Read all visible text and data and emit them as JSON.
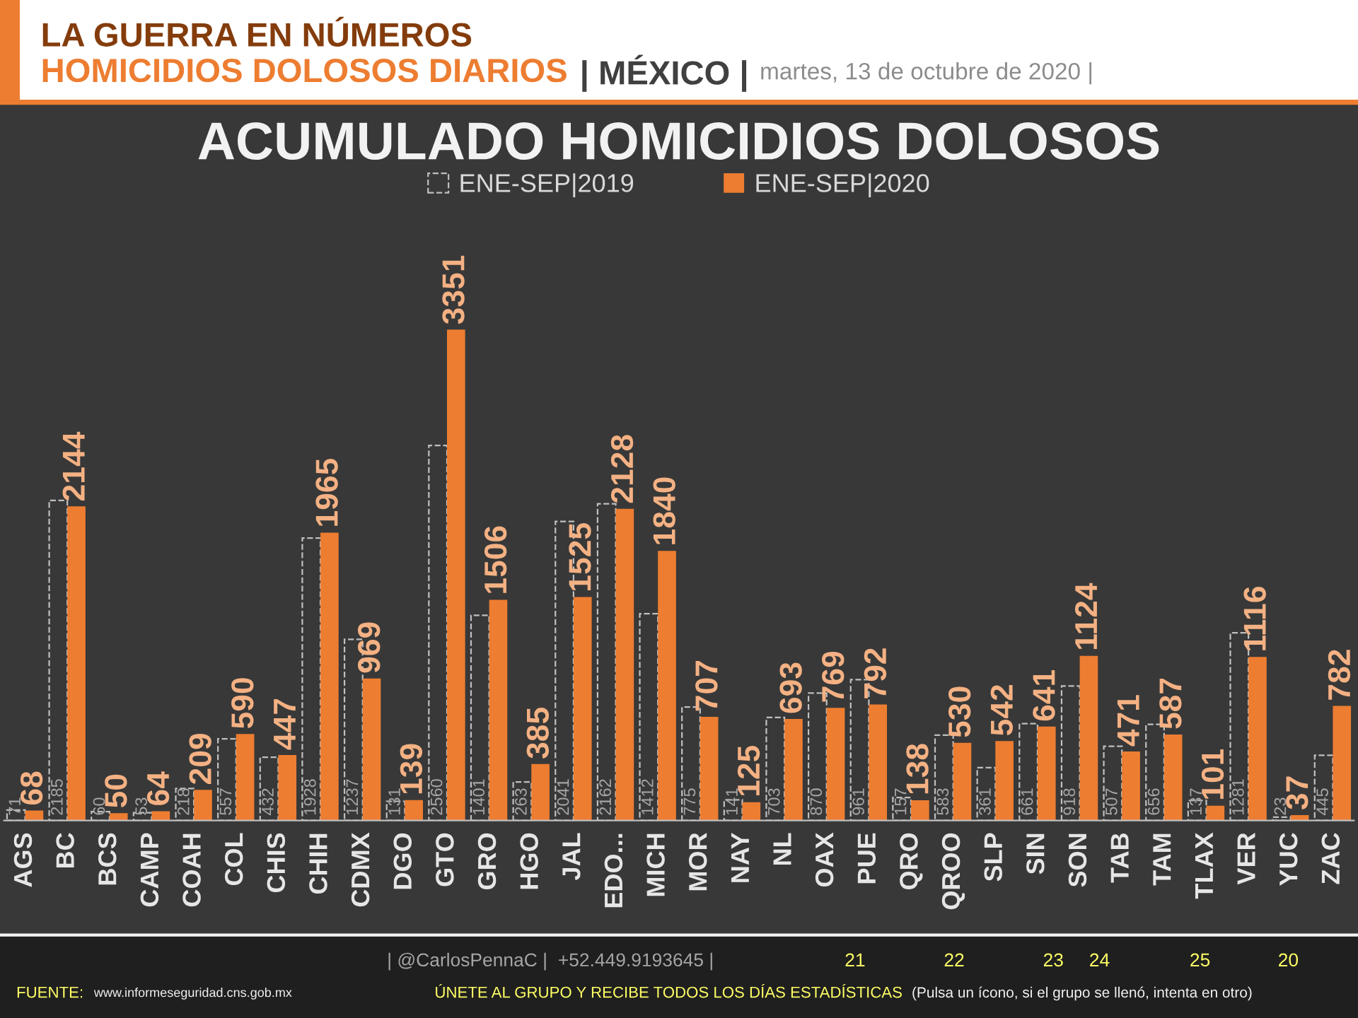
{
  "chart_data": {
    "type": "bar",
    "title": "ACUMULADO HOMICIDIOS DOLOSOS",
    "categories": [
      "AGS",
      "BC",
      "BCS",
      "CAMP",
      "COAH",
      "COL",
      "CHIS",
      "CHIH",
      "CDMX",
      "DGO",
      "GTO",
      "GRO",
      "HGO",
      "JAL",
      "EDO...",
      "MICH",
      "MOR",
      "NAY",
      "NL",
      "OAX",
      "PUE",
      "QRO",
      "QROO",
      "SLP",
      "SIN",
      "SON",
      "TAB",
      "TAM",
      "TLAX",
      "VER",
      "YUC",
      "ZAC"
    ],
    "series": [
      {
        "name": "ENE-SEP|2019",
        "color": "#bfbfbf",
        "line_style": "dashed",
        "values": [
          71,
          2185,
          60,
          53,
          218,
          557,
          432,
          1928,
          1237,
          131,
          2560,
          1401,
          263,
          2041,
          2162,
          1412,
          775,
          141,
          703,
          870,
          961,
          157,
          583,
          361,
          661,
          918,
          507,
          656,
          137,
          1281,
          23,
          445
        ]
      },
      {
        "name": "ENE-SEP|2020",
        "color": "#ed7d31",
        "values": [
          68,
          2144,
          50,
          64,
          209,
          590,
          447,
          1965,
          969,
          139,
          3351,
          1506,
          385,
          1525,
          2128,
          1840,
          707,
          125,
          693,
          769,
          792,
          138,
          530,
          542,
          641,
          1124,
          471,
          587,
          101,
          1116,
          37,
          782
        ]
      }
    ],
    "data_labels": true,
    "legend": "top",
    "tick_labels": "x",
    "annotations": [
      "LA GUERRA EN NÚMEROS",
      "HOMICIDIOS DOLOSOS DIARIOS",
      "| MÉXICO |",
      "martes, 13 de octubre de 2020 |",
      "| @CarlosPennaC |",
      "+52.449.9193645 |",
      "21",
      "22",
      "23",
      "24",
      "25",
      "20",
      "FUENTE:",
      "www.informeseguridad.cns.gob.mx",
      "ÚNETE AL GRUPO Y RECIBE TODOS LOS DÍAS ESTADÍSTICAS",
      "(Pulsa un ícono, si el grupo se llenó, intenta en otro)"
    ]
  }
}
